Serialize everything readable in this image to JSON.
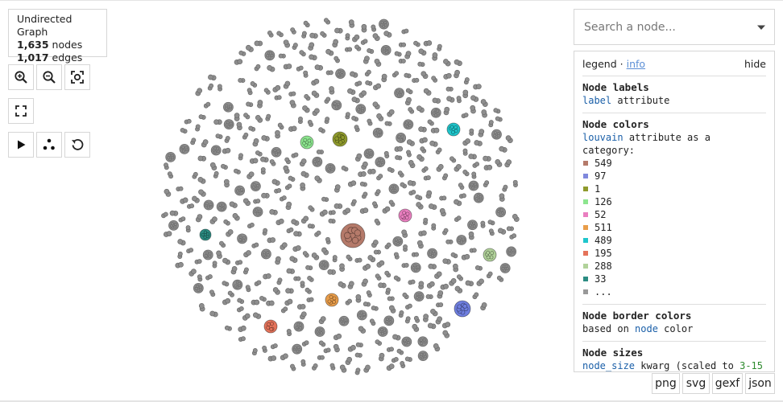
{
  "graph_info": {
    "title": "Undirected Graph",
    "nodes_count": "1,635",
    "nodes_label": "nodes",
    "edges_count": "1,017",
    "edges_label": "edges"
  },
  "controls": {
    "zoom_in_icon": "zoom-in-icon",
    "zoom_out_icon": "zoom-out-icon",
    "reset_zoom_icon": "reset-zoom-icon",
    "fullscreen_icon": "fullscreen-icon",
    "play_icon": "play-icon",
    "layout_icon": "layout-icon",
    "reset_layout_icon": "reset-layout-icon"
  },
  "search": {
    "placeholder": "Search a node..."
  },
  "legend": {
    "title": "legend",
    "separator": "·",
    "info_link": "info",
    "hide_link": "hide",
    "node_labels": {
      "heading": "Node labels",
      "attribute": "label",
      "suffix": "attribute"
    },
    "node_colors": {
      "heading": "Node colors",
      "attribute": "louvain",
      "suffix": "attribute as a",
      "suffix2": "category:",
      "items": [
        {
          "label": "549",
          "color": "#b57a6a"
        },
        {
          "label": "97",
          "color": "#7f88dd"
        },
        {
          "label": "1",
          "color": "#8f9a2c"
        },
        {
          "label": "126",
          "color": "#8de68f"
        },
        {
          "label": "52",
          "color": "#ea7fc0"
        },
        {
          "label": "511",
          "color": "#e99d4a"
        },
        {
          "label": "489",
          "color": "#1fc6cc"
        },
        {
          "label": "195",
          "color": "#e5735a"
        },
        {
          "label": "288",
          "color": "#b1d29a"
        },
        {
          "label": "33",
          "color": "#2b8c82"
        },
        {
          "label": "...",
          "color": "#999999"
        }
      ]
    },
    "node_border_colors": {
      "heading": "Node border colors",
      "prefix": "based on",
      "attribute": "node",
      "suffix": "color"
    },
    "node_sizes": {
      "heading": "Node sizes",
      "attribute": "node_size",
      "middle": "kwarg (scaled to",
      "range": "3-15"
    }
  },
  "export": {
    "png": "png",
    "svg": "svg",
    "gexf": "gexf",
    "json": "json"
  },
  "graph_highlights": [
    {
      "community": "549",
      "color": "#b57a6a"
    },
    {
      "community": "97",
      "color": "#6f7fe0"
    },
    {
      "community": "1",
      "color": "#8f9a2c"
    },
    {
      "community": "126",
      "color": "#8de68f"
    },
    {
      "community": "52",
      "color": "#ea7fc0"
    },
    {
      "community": "511",
      "color": "#e99d4a"
    },
    {
      "community": "489",
      "color": "#1fc6cc"
    },
    {
      "community": "195",
      "color": "#e5735a"
    },
    {
      "community": "288",
      "color": "#b1d29a"
    },
    {
      "community": "33",
      "color": "#2b8c82"
    }
  ]
}
